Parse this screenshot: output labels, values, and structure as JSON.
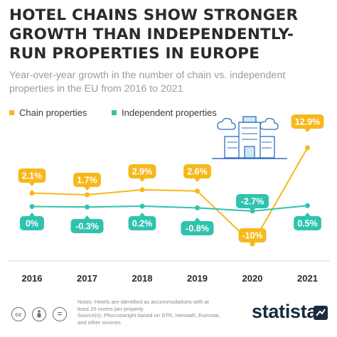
{
  "header": {
    "title_lines": [
      "HOTEL CHAINS SHOW STRONGER",
      "GROWTH THAN INDEPENDENTLY-",
      "RUN PROPERTIES IN EUROPE"
    ],
    "subtitle_lines": [
      "Year-over-year growth in the number of chain vs. independent",
      "properties in the EU from 2016 to 2021"
    ]
  },
  "legend": [
    {
      "label": "Chain properties",
      "color": "#F6B81A"
    },
    {
      "label": "Independent properties",
      "color": "#2FC3AE"
    }
  ],
  "chart_data": {
    "type": "line",
    "categories": [
      "2016",
      "2017",
      "2018",
      "2019",
      "2020",
      "2021"
    ],
    "series": [
      {
        "name": "Chain properties",
        "color": "#F6B81A",
        "values": [
          2.1,
          1.7,
          2.9,
          2.6,
          -10,
          12.9
        ],
        "labels": [
          "2.1%",
          "1.7%",
          "2.9%",
          "2.6%",
          "-10%",
          "12.9%"
        ]
      },
      {
        "name": "Independent properties",
        "color": "#2FC3AE",
        "values": [
          0,
          -0.3,
          0.2,
          -0.8,
          -2.7,
          0.5
        ],
        "labels": [
          "0%",
          "-0.3%",
          "0.2%",
          "-0.8%",
          "-2.7%",
          "0.5%"
        ]
      }
    ],
    "title": "HOTEL CHAINS SHOW STRONGER GROWTH THAN INDEPENDENTLY-RUN PROPERTIES IN EUROPE",
    "xlabel": "",
    "ylabel": "",
    "grid": false,
    "legend_position": "top-left"
  },
  "footer": {
    "note_lines": [
      "Notes: Hotels are identified as accommodations with at",
      "least 25 rooms per property",
      "Source(s): Phocuswright based on STR, Horwath, Eurostat,",
      "and other sources"
    ],
    "brand": "statista",
    "license_icons": [
      "cc",
      "by",
      "="
    ]
  },
  "icons": {
    "illustration": "hotel-building-icon"
  }
}
